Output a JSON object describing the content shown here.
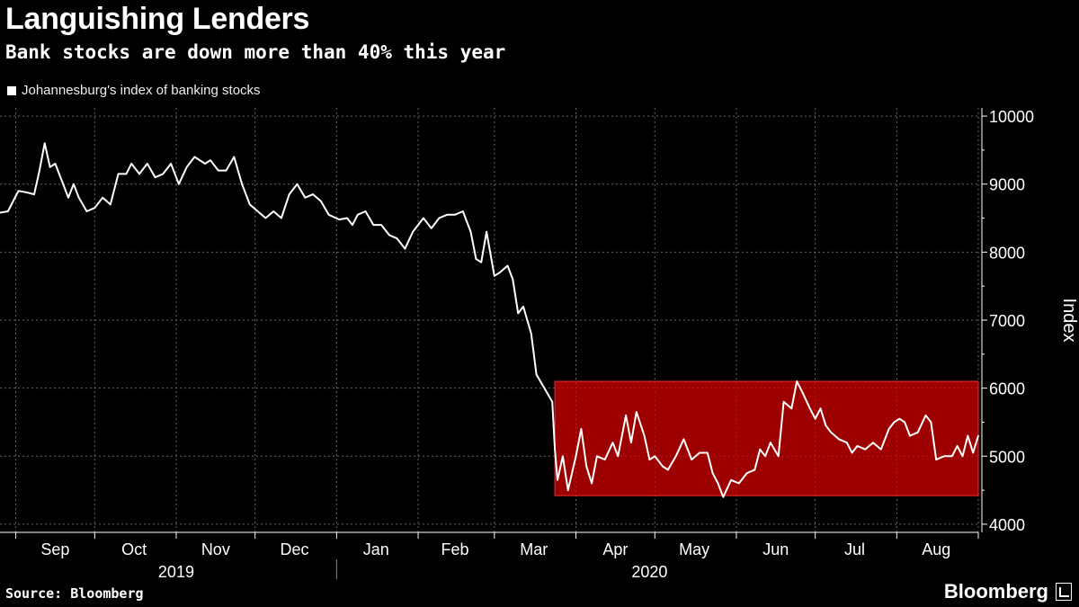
{
  "title": "Languishing Lenders",
  "subtitle": "Bank stocks are down more than 40% this year",
  "legend_label": "Johannesburg's index of banking stocks",
  "source": "Source: Bloomberg",
  "brand": "Bloomberg",
  "colors": {
    "background": "#000000",
    "line": "#ffffff",
    "highlight": "#d90000",
    "grid": "#666666"
  },
  "chart_data": {
    "type": "line",
    "title": "Languishing Lenders",
    "subtitle": "Bank stocks are down more than 40% this year",
    "xlabel": "",
    "ylabel": "Index",
    "ylim": [
      3880,
      10120
    ],
    "yticks": [
      4000,
      5000,
      6000,
      7000,
      8000,
      9000,
      10000
    ],
    "x_start": "2019-08-26",
    "x_end": "2020-09-01",
    "month_ticks": [
      "2019-09-01",
      "2019-10-01",
      "2019-11-01",
      "2019-12-01",
      "2020-01-01",
      "2020-02-01",
      "2020-03-01",
      "2020-04-01",
      "2020-05-01",
      "2020-06-01",
      "2020-07-01",
      "2020-08-01",
      "2020-09-01"
    ],
    "month_labels": [
      {
        "label": "Sep",
        "mid": "2019-09-16"
      },
      {
        "label": "Oct",
        "mid": "2019-10-16"
      },
      {
        "label": "Nov",
        "mid": "2019-11-16"
      },
      {
        "label": "Dec",
        "mid": "2019-12-16"
      },
      {
        "label": "Jan",
        "mid": "2020-01-16"
      },
      {
        "label": "Feb",
        "mid": "2020-02-15"
      },
      {
        "label": "Mar",
        "mid": "2020-03-16"
      },
      {
        "label": "Apr",
        "mid": "2020-04-16"
      },
      {
        "label": "May",
        "mid": "2020-05-16"
      },
      {
        "label": "Jun",
        "mid": "2020-06-16"
      },
      {
        "label": "Jul",
        "mid": "2020-07-16"
      },
      {
        "label": "Aug",
        "mid": "2020-08-16"
      }
    ],
    "year_labels": [
      {
        "label": "2019",
        "mid": "2019-11-01"
      },
      {
        "label": "2020",
        "mid": "2020-04-29"
      }
    ],
    "year_divider": "2020-01-01",
    "highlight_range": {
      "x_start": "2020-03-24",
      "x_end": "2020-09-01",
      "y_low": 4420,
      "y_high": 6100
    },
    "series": [
      {
        "name": "Johannesburg's index of banking stocks",
        "points": [
          [
            "2019-08-26",
            8580
          ],
          [
            "2019-08-29",
            8600
          ],
          [
            "2019-09-02",
            8900
          ],
          [
            "2019-09-05",
            8880
          ],
          [
            "2019-09-08",
            8850
          ],
          [
            "2019-09-10",
            9200
          ],
          [
            "2019-09-12",
            9600
          ],
          [
            "2019-09-14",
            9250
          ],
          [
            "2019-09-16",
            9300
          ],
          [
            "2019-09-19",
            9000
          ],
          [
            "2019-09-21",
            8800
          ],
          [
            "2019-09-23",
            9000
          ],
          [
            "2019-09-25",
            8800
          ],
          [
            "2019-09-28",
            8600
          ],
          [
            "2019-10-01",
            8650
          ],
          [
            "2019-10-04",
            8800
          ],
          [
            "2019-10-07",
            8700
          ],
          [
            "2019-10-10",
            9150
          ],
          [
            "2019-10-13",
            9150
          ],
          [
            "2019-10-15",
            9300
          ],
          [
            "2019-10-18",
            9150
          ],
          [
            "2019-10-21",
            9300
          ],
          [
            "2019-10-24",
            9100
          ],
          [
            "2019-10-27",
            9150
          ],
          [
            "2019-10-30",
            9300
          ],
          [
            "2019-11-02",
            9000
          ],
          [
            "2019-11-05",
            9250
          ],
          [
            "2019-11-08",
            9400
          ],
          [
            "2019-11-12",
            9300
          ],
          [
            "2019-11-14",
            9350
          ],
          [
            "2019-11-17",
            9200
          ],
          [
            "2019-11-20",
            9200
          ],
          [
            "2019-11-23",
            9400
          ],
          [
            "2019-11-26",
            9000
          ],
          [
            "2019-11-29",
            8700
          ],
          [
            "2019-12-02",
            8600
          ],
          [
            "2019-12-05",
            8500
          ],
          [
            "2019-12-08",
            8600
          ],
          [
            "2019-12-11",
            8500
          ],
          [
            "2019-12-14",
            8850
          ],
          [
            "2019-12-17",
            9000
          ],
          [
            "2019-12-20",
            8800
          ],
          [
            "2019-12-23",
            8850
          ],
          [
            "2019-12-26",
            8750
          ],
          [
            "2019-12-29",
            8550
          ],
          [
            "2020-01-02",
            8480
          ],
          [
            "2020-01-05",
            8500
          ],
          [
            "2020-01-07",
            8400
          ],
          [
            "2020-01-09",
            8550
          ],
          [
            "2020-01-12",
            8600
          ],
          [
            "2020-01-15",
            8400
          ],
          [
            "2020-01-18",
            8400
          ],
          [
            "2020-01-21",
            8250
          ],
          [
            "2020-01-24",
            8200
          ],
          [
            "2020-01-27",
            8050
          ],
          [
            "2020-01-30",
            8300
          ],
          [
            "2020-02-03",
            8500
          ],
          [
            "2020-02-06",
            8350
          ],
          [
            "2020-02-09",
            8500
          ],
          [
            "2020-02-12",
            8550
          ],
          [
            "2020-02-15",
            8550
          ],
          [
            "2020-02-18",
            8600
          ],
          [
            "2020-02-21",
            8300
          ],
          [
            "2020-02-23",
            7900
          ],
          [
            "2020-02-25",
            7850
          ],
          [
            "2020-02-27",
            8300
          ],
          [
            "2020-03-01",
            7650
          ],
          [
            "2020-03-03",
            7700
          ],
          [
            "2020-03-06",
            7800
          ],
          [
            "2020-03-08",
            7600
          ],
          [
            "2020-03-10",
            7100
          ],
          [
            "2020-03-12",
            7200
          ],
          [
            "2020-03-15",
            6800
          ],
          [
            "2020-03-17",
            6200
          ],
          [
            "2020-03-20",
            6000
          ],
          [
            "2020-03-23",
            5800
          ],
          [
            "2020-03-24",
            5100
          ],
          [
            "2020-03-25",
            4650
          ],
          [
            "2020-03-27",
            5000
          ],
          [
            "2020-03-29",
            4500
          ],
          [
            "2020-04-01",
            5000
          ],
          [
            "2020-04-03",
            5400
          ],
          [
            "2020-04-05",
            4850
          ],
          [
            "2020-04-07",
            4600
          ],
          [
            "2020-04-09",
            5000
          ],
          [
            "2020-04-12",
            4950
          ],
          [
            "2020-04-15",
            5200
          ],
          [
            "2020-04-17",
            5000
          ],
          [
            "2020-04-20",
            5600
          ],
          [
            "2020-04-22",
            5200
          ],
          [
            "2020-04-24",
            5650
          ],
          [
            "2020-04-27",
            5300
          ],
          [
            "2020-04-29",
            4950
          ],
          [
            "2020-05-01",
            5000
          ],
          [
            "2020-05-04",
            4850
          ],
          [
            "2020-05-06",
            4800
          ],
          [
            "2020-05-09",
            5000
          ],
          [
            "2020-05-12",
            5250
          ],
          [
            "2020-05-15",
            4950
          ],
          [
            "2020-05-18",
            5050
          ],
          [
            "2020-05-21",
            5050
          ],
          [
            "2020-05-23",
            4750
          ],
          [
            "2020-05-25",
            4600
          ],
          [
            "2020-05-27",
            4400
          ],
          [
            "2020-05-30",
            4650
          ],
          [
            "2020-06-02",
            4600
          ],
          [
            "2020-06-05",
            4750
          ],
          [
            "2020-06-08",
            4800
          ],
          [
            "2020-06-10",
            5100
          ],
          [
            "2020-06-12",
            5000
          ],
          [
            "2020-06-14",
            5200
          ],
          [
            "2020-06-17",
            5000
          ],
          [
            "2020-06-19",
            5800
          ],
          [
            "2020-06-22",
            5700
          ],
          [
            "2020-06-24",
            6100
          ],
          [
            "2020-06-26",
            5950
          ],
          [
            "2020-06-29",
            5700
          ],
          [
            "2020-07-01",
            5550
          ],
          [
            "2020-07-03",
            5700
          ],
          [
            "2020-07-05",
            5450
          ],
          [
            "2020-07-07",
            5350
          ],
          [
            "2020-07-10",
            5250
          ],
          [
            "2020-07-13",
            5200
          ],
          [
            "2020-07-15",
            5050
          ],
          [
            "2020-07-17",
            5150
          ],
          [
            "2020-07-20",
            5100
          ],
          [
            "2020-07-23",
            5200
          ],
          [
            "2020-07-26",
            5100
          ],
          [
            "2020-07-29",
            5400
          ],
          [
            "2020-07-31",
            5500
          ],
          [
            "2020-08-02",
            5550
          ],
          [
            "2020-08-04",
            5500
          ],
          [
            "2020-08-06",
            5300
          ],
          [
            "2020-08-09",
            5350
          ],
          [
            "2020-08-12",
            5600
          ],
          [
            "2020-08-14",
            5500
          ],
          [
            "2020-08-16",
            4950
          ],
          [
            "2020-08-19",
            5000
          ],
          [
            "2020-08-22",
            5000
          ],
          [
            "2020-08-24",
            5150
          ],
          [
            "2020-08-26",
            5000
          ],
          [
            "2020-08-28",
            5300
          ],
          [
            "2020-08-30",
            5050
          ],
          [
            "2020-09-01",
            5300
          ]
        ]
      }
    ]
  }
}
